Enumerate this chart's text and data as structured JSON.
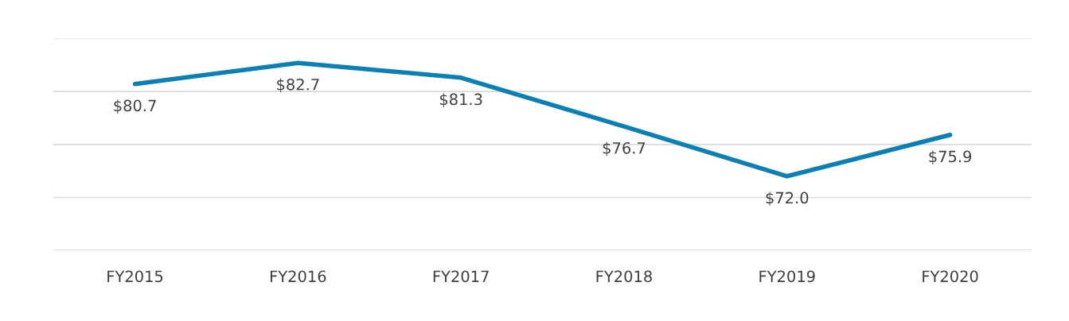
{
  "chart_data": {
    "type": "line",
    "categories": [
      "FY2015",
      "FY2016",
      "FY2017",
      "FY2018",
      "FY2019",
      "FY2020"
    ],
    "series": [
      {
        "color": "#0a80b4",
        "values": [
          80.7,
          82.7,
          81.3,
          76.7,
          72.0,
          75.9
        ],
        "value_labels": [
          "$80.7",
          "$82.7",
          "$81.3",
          "$76.7",
          "$72.0",
          "$75.9"
        ]
      }
    ],
    "ylim": [
      65,
      85
    ],
    "yticks": [
      {
        "value": 65,
        "label": null
      },
      {
        "value": 70,
        "label": null
      },
      {
        "value": 75,
        "label": null
      },
      {
        "value": 80,
        "label": null
      },
      {
        "value": 85,
        "label": null
      }
    ],
    "grid": "y",
    "tick_labels": "x",
    "marker": "none",
    "line_style": "solid",
    "legend": false
  }
}
